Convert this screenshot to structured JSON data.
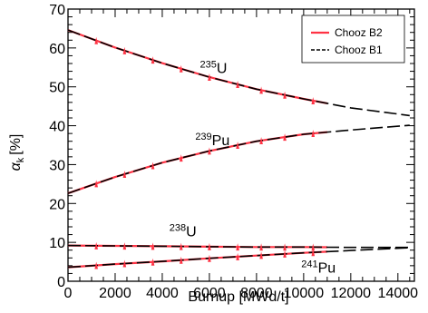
{
  "chart_data": {
    "type": "line",
    "xlabel": "Burnup [MWd/t]",
    "ylabel": {
      "symbol": "α",
      "subscript": "k",
      "unit": "[%]"
    },
    "xlim": [
      0,
      14700
    ],
    "ylim": [
      0,
      70
    ],
    "x_ticks": [
      0,
      2000,
      4000,
      6000,
      8000,
      10000,
      12000,
      14000
    ],
    "x_tick_labels": [
      "0",
      "2000",
      "4000",
      "6000",
      "8000",
      "10000",
      "12000",
      "14000"
    ],
    "y_ticks": [
      0,
      10,
      20,
      30,
      40,
      50,
      60,
      70
    ],
    "y_tick_labels": [
      "0",
      "10",
      "20",
      "30",
      "40",
      "50",
      "60",
      "70"
    ],
    "legend_position": "top-right",
    "series": [
      {
        "name": "Chooz B2",
        "color": "#ff3344",
        "style": "solid"
      },
      {
        "name": "Chooz B1",
        "color": "#000000",
        "style": "dashed"
      }
    ],
    "isotopes": [
      {
        "mass": "235",
        "element": "U",
        "label_at": [
          5600,
          53.5
        ],
        "x": [
          0,
          2000,
          4000,
          6000,
          8000,
          10000,
          12000,
          14500
        ],
        "y": [
          64.6,
          60.1,
          56.1,
          52.5,
          49.4,
          46.9,
          44.6,
          42.6
        ]
      },
      {
        "mass": "239",
        "element": "Pu",
        "label_at": [
          5400,
          35.0
        ],
        "x": [
          0,
          2000,
          4000,
          6000,
          8000,
          10000,
          12000,
          14500
        ],
        "y": [
          22.6,
          26.8,
          30.5,
          33.5,
          36.0,
          37.8,
          38.9,
          40.1
        ]
      },
      {
        "mass": "238",
        "element": "U",
        "label_at": [
          4300,
          11.6
        ],
        "x": [
          0,
          2000,
          4000,
          6000,
          8000,
          10000,
          12000,
          14500
        ],
        "y": [
          9.2,
          9.1,
          9.0,
          8.9,
          8.8,
          8.8,
          8.7,
          8.7
        ]
      },
      {
        "mass": "241",
        "element": "Pu",
        "label_at": [
          9900,
          2.2
        ],
        "x": [
          0,
          2000,
          4000,
          6000,
          8000,
          10000,
          12000,
          14500
        ],
        "y": [
          3.6,
          4.4,
          5.1,
          5.9,
          6.6,
          7.3,
          7.9,
          8.6
        ]
      }
    ],
    "chooz_b2_marker_x": [
      1200,
      2400,
      3600,
      4800,
      6000,
      7200,
      8200,
      9200,
      10400
    ]
  }
}
